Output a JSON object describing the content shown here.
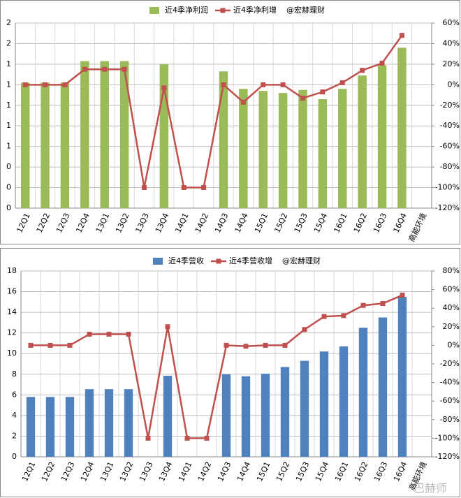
{
  "chart_data": [
    {
      "type": "bar",
      "annotation": "@宏赫理财",
      "categories": [
        "12Q1",
        "12Q2",
        "12Q3",
        "12Q4",
        "13Q1",
        "13Q2",
        "13Q3",
        "13Q4",
        "14Q1",
        "14Q2",
        "14Q3",
        "14Q4",
        "15Q1",
        "15Q2",
        "15Q3",
        "15Q4",
        "16Q1",
        "16Q2",
        "16Q3",
        "16Q4",
        "高能环境"
      ],
      "series": [
        {
          "name": "近4季净利润",
          "type": "bar",
          "color": "#9bbb59",
          "values": [
            1.22,
            1.22,
            1.22,
            1.43,
            1.43,
            1.43,
            null,
            1.4,
            null,
            null,
            1.33,
            1.16,
            1.14,
            1.12,
            1.15,
            1.06,
            1.16,
            1.29,
            1.39,
            1.56,
            null
          ]
        },
        {
          "name": "近4季净利增",
          "type": "line",
          "axis": "y2",
          "color": "#c0504d",
          "values": [
            0,
            0,
            0,
            15,
            15,
            15,
            -100,
            -3,
            -100,
            -100,
            0,
            -17,
            0,
            0,
            -13,
            -7,
            2,
            14,
            21,
            48,
            null
          ]
        }
      ],
      "ylim": [
        0,
        1.8
      ],
      "yticks": [
        0,
        {
          "value": 0.2,
          "label": "0"
        },
        {
          "value": 0.4,
          "label": "0"
        },
        {
          "value": 0.6,
          "label": "1"
        },
        {
          "value": 0.8,
          "label": "1"
        },
        1,
        {
          "value": 1.2,
          "label": "1"
        },
        {
          "value": 1.4,
          "label": "1"
        },
        {
          "value": 1.6,
          "label": "2"
        },
        {
          "value": 1.8,
          "label": "2"
        }
      ],
      "y2lim": [
        -120,
        60
      ],
      "y2ticks": [
        {
          "value": -120,
          "label": "-120%"
        },
        {
          "value": -100,
          "label": "-100%"
        },
        {
          "value": -80,
          "label": "-80%"
        },
        {
          "value": -60,
          "label": "-60%"
        },
        {
          "value": -40,
          "label": "-40%"
        },
        {
          "value": -20,
          "label": "-20%"
        },
        {
          "value": 0,
          "label": "0%"
        },
        {
          "value": 20,
          "label": "20%"
        },
        {
          "value": 40,
          "label": "40%"
        },
        {
          "value": 60,
          "label": "60%"
        }
      ],
      "grid": true
    },
    {
      "type": "bar",
      "annotation": "@宏赫理财",
      "categories": [
        "12Q1",
        "12Q2",
        "12Q3",
        "12Q4",
        "13Q1",
        "13Q2",
        "13Q3",
        "13Q4",
        "14Q1",
        "14Q2",
        "14Q3",
        "14Q4",
        "15Q1",
        "15Q2",
        "15Q3",
        "15Q4",
        "16Q1",
        "16Q2",
        "16Q3",
        "16Q4",
        "高能环境"
      ],
      "series": [
        {
          "name": "近4季营收",
          "type": "bar",
          "color": "#4f81bd",
          "values": [
            5.8,
            5.8,
            5.8,
            6.55,
            6.55,
            6.55,
            null,
            7.85,
            null,
            null,
            8.0,
            7.8,
            8.05,
            8.7,
            9.3,
            10.2,
            10.7,
            12.5,
            13.5,
            15.5,
            null
          ]
        },
        {
          "name": "近4季营收增",
          "type": "line",
          "axis": "y2",
          "color": "#c0504d",
          "values": [
            0,
            0,
            0,
            12,
            12,
            12,
            -100,
            20,
            -100,
            -100,
            0,
            -1,
            0,
            0,
            17,
            31,
            32,
            43,
            45,
            54,
            null
          ]
        }
      ],
      "ylim": [
        0,
        18
      ],
      "yticks": [
        0,
        2,
        4,
        6,
        8,
        10,
        12,
        14,
        16,
        18
      ],
      "y2lim": [
        -120,
        80
      ],
      "y2ticks": [
        {
          "value": -120,
          "label": "-120%"
        },
        {
          "value": -100,
          "label": "-100%"
        },
        {
          "value": -80,
          "label": "-80%"
        },
        {
          "value": -60,
          "label": "-60%"
        },
        {
          "value": -40,
          "label": "-40%"
        },
        {
          "value": -20,
          "label": "-20%"
        },
        {
          "value": 0,
          "label": "0%"
        },
        {
          "value": 20,
          "label": "20%"
        },
        {
          "value": 40,
          "label": "40%"
        },
        {
          "value": 60,
          "label": "60%"
        },
        {
          "value": 80,
          "label": "80%"
        }
      ],
      "grid": true
    }
  ],
  "watermark": "巴赫师"
}
